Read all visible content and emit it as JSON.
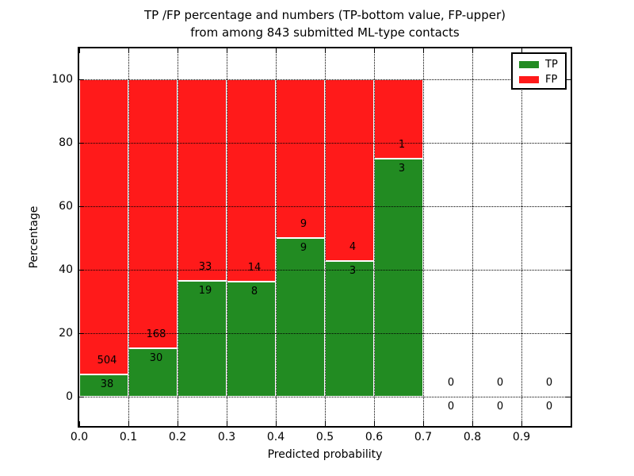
{
  "chart_data": {
    "type": "bar",
    "stacked": true,
    "title_line1": "TP /FP percentage and numbers (TP-bottom value, FP-upper)",
    "title_line2": "from among 843 submitted ML-type contacts",
    "total_submitted": 843,
    "xlabel": "Predicted probability",
    "ylabel": "Percentage",
    "xlim": [
      0.0,
      1.0
    ],
    "ylim": [
      -10,
      110
    ],
    "x_ticks": [
      "0.0",
      "0.1",
      "0.2",
      "0.3",
      "0.4",
      "0.5",
      "0.6",
      "0.7",
      "0.8",
      "0.9"
    ],
    "y_ticks": [
      "0",
      "20",
      "40",
      "60",
      "80",
      "100"
    ],
    "y_tick_values": [
      0,
      20,
      40,
      60,
      80,
      100
    ],
    "grid_style": "dotted",
    "legend": {
      "position": "upper right",
      "entries": [
        {
          "label": "TP",
          "color": "#228b22"
        },
        {
          "label": "FP",
          "color": "#ff1a1a"
        }
      ]
    },
    "colors": {
      "tp": "#228b22",
      "fp": "#ff1a1a",
      "bar_edge": "#ffffff",
      "grid": "#000000"
    },
    "bins": [
      {
        "range": [
          0.0,
          0.1
        ],
        "tp": 38,
        "fp": 504,
        "tp_pct": 7.01,
        "fp_pct": 92.99
      },
      {
        "range": [
          0.1,
          0.2
        ],
        "tp": 30,
        "fp": 168,
        "tp_pct": 15.15,
        "fp_pct": 84.85
      },
      {
        "range": [
          0.2,
          0.3
        ],
        "tp": 19,
        "fp": 33,
        "tp_pct": 36.54,
        "fp_pct": 63.46
      },
      {
        "range": [
          0.3,
          0.4
        ],
        "tp": 8,
        "fp": 14,
        "tp_pct": 36.36,
        "fp_pct": 63.64
      },
      {
        "range": [
          0.4,
          0.5
        ],
        "tp": 9,
        "fp": 9,
        "tp_pct": 50.0,
        "fp_pct": 50.0
      },
      {
        "range": [
          0.5,
          0.6
        ],
        "tp": 3,
        "fp": 4,
        "tp_pct": 42.86,
        "fp_pct": 57.14
      },
      {
        "range": [
          0.6,
          0.7
        ],
        "tp": 3,
        "fp": 1,
        "tp_pct": 75.0,
        "fp_pct": 25.0
      },
      {
        "range": [
          0.7,
          0.8
        ],
        "tp": 0,
        "fp": 0,
        "tp_pct": 0,
        "fp_pct": 0
      },
      {
        "range": [
          0.8,
          0.9
        ],
        "tp": 0,
        "fp": 0,
        "tp_pct": 0,
        "fp_pct": 0
      },
      {
        "range": [
          0.9,
          1.0
        ],
        "tp": 0,
        "fp": 0,
        "tp_pct": 0,
        "fp_pct": 0
      }
    ]
  }
}
